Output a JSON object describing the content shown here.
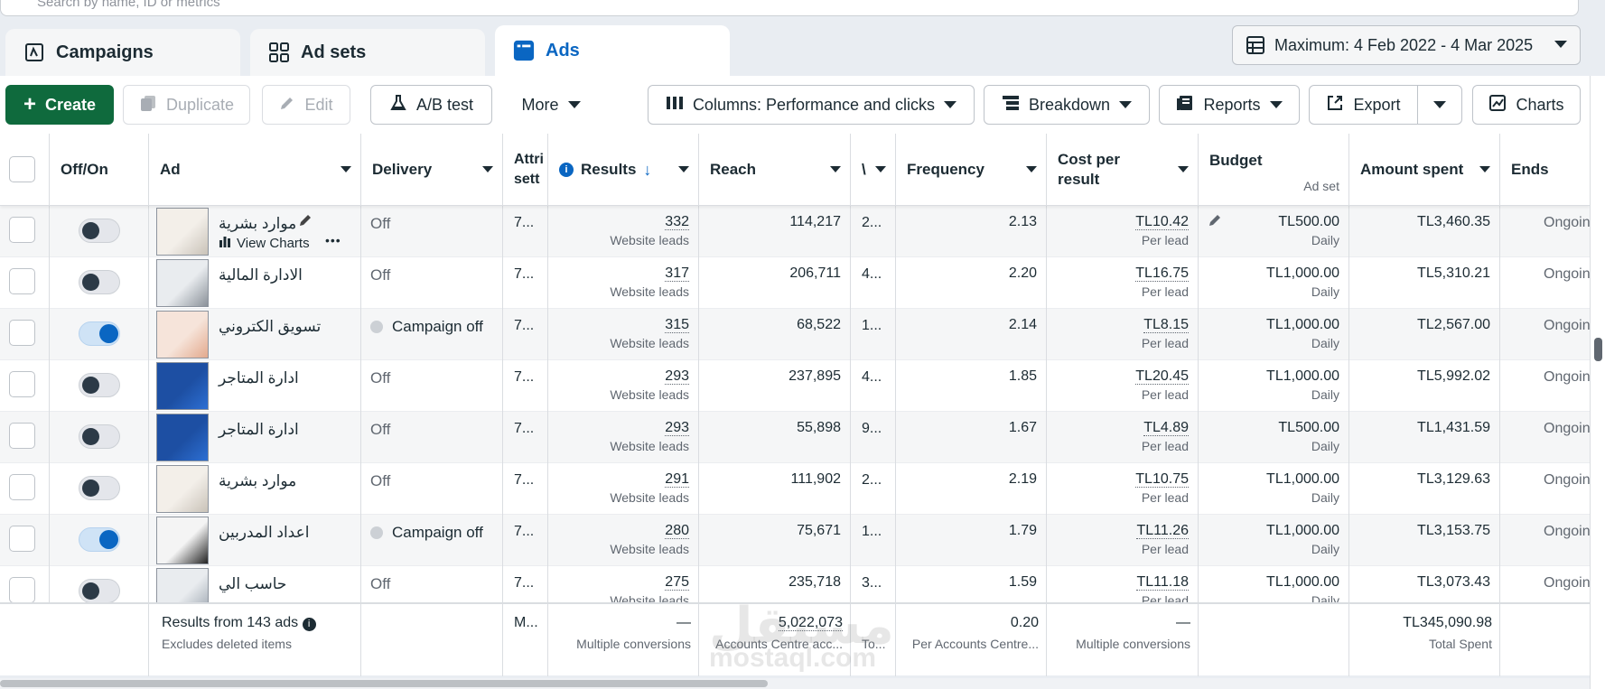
{
  "search": {
    "placeholder": "Search by name, ID or metrics"
  },
  "tabs": [
    {
      "label": "Campaigns"
    },
    {
      "label": "Ad sets"
    },
    {
      "label": "Ads"
    }
  ],
  "date_range": {
    "label": "Maximum: 4 Feb 2022 - 4 Mar 2025"
  },
  "toolbar": {
    "create": "Create",
    "duplicate": "Duplicate",
    "edit": "Edit",
    "ab_test": "A/B test",
    "more": "More",
    "columns": "Columns: Performance and clicks",
    "breakdown": "Breakdown",
    "reports": "Reports",
    "export": "Export",
    "charts": "Charts"
  },
  "columns": {
    "offon": "Off/On",
    "ad": "Ad",
    "delivery": "Delivery",
    "attribution": "Attri sett",
    "results": "Results",
    "reach": "Reach",
    "impressions": "\\",
    "frequency": "Frequency",
    "cost_line1": "Cost per",
    "cost_line2": "result",
    "budget": "Budget",
    "budget_sub": "Ad set",
    "amount": "Amount spent",
    "ends": "Ends"
  },
  "row_actions": {
    "view_charts": "View Charts",
    "more": "•••"
  },
  "rows": [
    {
      "name": "موارد بشرية",
      "on": false,
      "delivery": "Off",
      "campaign_off": false,
      "attr": "7...",
      "results": "332",
      "results_sub": "Website leads",
      "reach": "114,217",
      "impr": "2...",
      "frequency": "2.13",
      "cost": "TL10.42",
      "cost_sub": "Per lead",
      "budget": "TL500.00",
      "budget_sub": "Daily",
      "amount": "TL3,460.35",
      "ends": "Ongoing"
    },
    {
      "name": "الادارة المالية",
      "on": false,
      "delivery": "Off",
      "campaign_off": false,
      "attr": "7...",
      "results": "317",
      "results_sub": "Website leads",
      "reach": "206,711",
      "impr": "4...",
      "frequency": "2.20",
      "cost": "TL16.75",
      "cost_sub": "Per lead",
      "budget": "TL1,000.00",
      "budget_sub": "Daily",
      "amount": "TL5,310.21",
      "ends": "Ongoing"
    },
    {
      "name": "تسويق الكتروني",
      "on": true,
      "delivery": "Campaign off",
      "campaign_off": true,
      "attr": "7...",
      "results": "315",
      "results_sub": "Website leads",
      "reach": "68,522",
      "impr": "1...",
      "frequency": "2.14",
      "cost": "TL8.15",
      "cost_sub": "Per lead",
      "budget": "TL1,000.00",
      "budget_sub": "Daily",
      "amount": "TL2,567.00",
      "ends": "Ongoing"
    },
    {
      "name": "ادارة المتاجر",
      "on": false,
      "delivery": "Off",
      "campaign_off": false,
      "attr": "7...",
      "results": "293",
      "results_sub": "Website leads",
      "reach": "237,895",
      "impr": "4...",
      "frequency": "1.85",
      "cost": "TL20.45",
      "cost_sub": "Per lead",
      "budget": "TL1,000.00",
      "budget_sub": "Daily",
      "amount": "TL5,992.02",
      "ends": "Ongoing"
    },
    {
      "name": "ادارة المتاجر",
      "on": false,
      "delivery": "Off",
      "campaign_off": false,
      "attr": "7...",
      "results": "293",
      "results_sub": "Website leads",
      "reach": "55,898",
      "impr": "9...",
      "frequency": "1.67",
      "cost": "TL4.89",
      "cost_sub": "Per lead",
      "budget": "TL500.00",
      "budget_sub": "Daily",
      "amount": "TL1,431.59",
      "ends": "Ongoing"
    },
    {
      "name": "موارد بشرية",
      "on": false,
      "delivery": "Off",
      "campaign_off": false,
      "attr": "7...",
      "results": "291",
      "results_sub": "Website leads",
      "reach": "111,902",
      "impr": "2...",
      "frequency": "2.19",
      "cost": "TL10.75",
      "cost_sub": "Per lead",
      "budget": "TL1,000.00",
      "budget_sub": "Daily",
      "amount": "TL3,129.63",
      "ends": "Ongoing"
    },
    {
      "name": "اعداد المدربين",
      "on": true,
      "delivery": "Campaign off",
      "campaign_off": true,
      "attr": "7...",
      "results": "280",
      "results_sub": "Website leads",
      "reach": "75,671",
      "impr": "1...",
      "frequency": "1.79",
      "cost": "TL11.26",
      "cost_sub": "Per lead",
      "budget": "TL1,000.00",
      "budget_sub": "Daily",
      "amount": "TL3,153.75",
      "ends": "Ongoing"
    },
    {
      "name": "حاسب الي",
      "on": false,
      "delivery": "Off",
      "campaign_off": false,
      "attr": "7...",
      "results": "275",
      "results_sub": "Website leads",
      "reach": "235,718",
      "impr": "3...",
      "frequency": "1.59",
      "cost": "TL11.18",
      "cost_sub": "Per lead",
      "budget": "TL1,000.00",
      "budget_sub": "Daily",
      "amount": "TL3,073.43",
      "ends": "Ongoing"
    }
  ],
  "totals": {
    "label": "Results from 143 ads",
    "label_sub": "Excludes deleted items",
    "attr": "M...",
    "results": "—",
    "results_sub": "Multiple conversions",
    "reach": "5,022,073",
    "reach_sub": "Accounts Centre acc...",
    "impr_sub": "To...",
    "frequency": "0.20",
    "frequency_sub": "Per Accounts Centre...",
    "cost": "—",
    "cost_sub": "Multiple conversions",
    "amount": "TL345,090.98",
    "amount_sub": "Total Spent"
  },
  "watermark": {
    "line1": "مستقل",
    "line2": "mostaql.com"
  },
  "colors": {
    "primary_green": "#0f6a3d",
    "active_blue": "#0a66c2",
    "border": "#dadde1"
  }
}
